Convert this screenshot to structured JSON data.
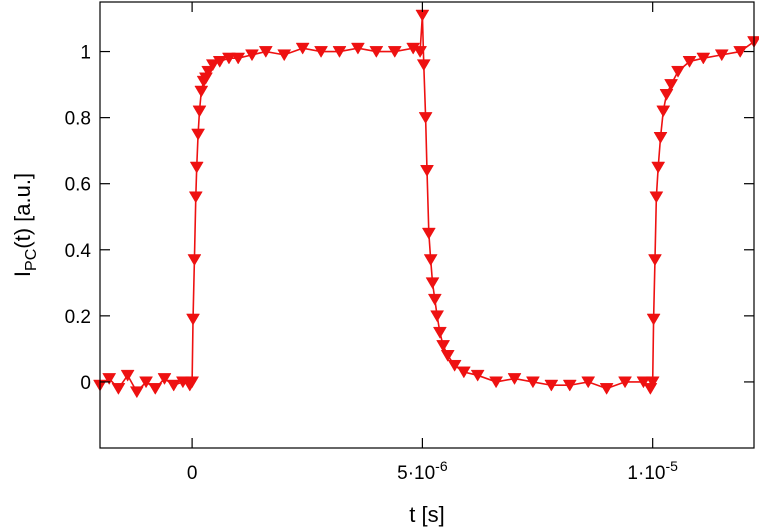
{
  "chart_data": {
    "type": "line",
    "title": "",
    "xlabel": "t [s]",
    "ylabel": "I_PC(t) [a.u.]",
    "ylabel_main": "I",
    "ylabel_sub": "PC",
    "ylabel_rest": "(t) [a.u.]",
    "xlim": [
      -2e-06,
      1.22e-05
    ],
    "ylim": [
      -0.2,
      1.15
    ],
    "grid": false,
    "marker": "down-triangle",
    "color": "#ee1111",
    "x_ticks": [
      {
        "value": 0,
        "label": "0",
        "label_exp": ""
      },
      {
        "value": 5e-06,
        "label": "5·10",
        "label_exp": "-6"
      },
      {
        "value": 1e-05,
        "label": "1·10",
        "label_exp": "-5"
      }
    ],
    "y_ticks": [
      {
        "value": 0,
        "label": "0"
      },
      {
        "value": 0.2,
        "label": "0.2"
      },
      {
        "value": 0.4,
        "label": "0.4"
      },
      {
        "value": 0.6,
        "label": "0.6"
      },
      {
        "value": 0.8,
        "label": "0.8"
      },
      {
        "value": 1.0,
        "label": "1"
      }
    ],
    "series": [
      {
        "x": [
          -2e-06,
          -1.8e-06,
          -1.6e-06,
          -1.4e-06,
          -1.2e-06,
          -1e-06,
          -8e-07,
          -6e-07,
          -4e-07,
          -2e-07,
          -5e-08,
          0.0,
          2e-08,
          5e-08,
          8e-08,
          1e-07,
          1.3e-07,
          1.6e-07,
          2e-07,
          2.5e-07,
          3e-07,
          3.5e-07,
          4.5e-07,
          6e-07,
          8e-07,
          1e-06,
          1.3e-06,
          1.6e-06,
          2e-06,
          2.4e-06,
          2.8e-06,
          3.2e-06,
          3.6e-06,
          4e-06,
          4.4e-06,
          4.8e-06,
          4.95e-06,
          5e-06,
          5.03e-06,
          5.07e-06,
          5.1e-06,
          5.14e-06,
          5.18e-06,
          5.22e-06,
          5.27e-06,
          5.32e-06,
          5.38e-06,
          5.45e-06,
          5.55e-06,
          5.7e-06,
          5.9e-06,
          6.2e-06,
          6.6e-06,
          7e-06,
          7.4e-06,
          7.8e-06,
          8.2e-06,
          8.6e-06,
          9e-06,
          9.4e-06,
          9.8e-06,
          9.95e-06,
          1e-05,
          1.002e-05,
          1.005e-05,
          1.008e-05,
          1.012e-05,
          1.017e-05,
          1.023e-05,
          1.03e-05,
          1.04e-05,
          1.055e-05,
          1.08e-05,
          1.11e-05,
          1.15e-05,
          1.19e-05,
          1.22e-05
        ],
        "y": [
          -0.01,
          0.01,
          -0.02,
          0.02,
          -0.03,
          0.0,
          -0.02,
          0.01,
          -0.01,
          0.0,
          -0.01,
          0.0,
          0.19,
          0.37,
          0.56,
          0.65,
          0.75,
          0.82,
          0.88,
          0.91,
          0.92,
          0.94,
          0.96,
          0.97,
          0.98,
          0.98,
          0.99,
          1.0,
          0.99,
          1.01,
          1.0,
          1.0,
          1.01,
          1.0,
          1.0,
          1.01,
          1.0,
          1.11,
          0.96,
          0.8,
          0.64,
          0.45,
          0.37,
          0.3,
          0.25,
          0.2,
          0.15,
          0.11,
          0.08,
          0.05,
          0.03,
          0.02,
          0.0,
          0.01,
          0.0,
          -0.01,
          -0.01,
          0.0,
          -0.02,
          0.0,
          0.0,
          -0.02,
          0.0,
          0.19,
          0.37,
          0.56,
          0.65,
          0.74,
          0.82,
          0.87,
          0.9,
          0.94,
          0.97,
          0.98,
          0.99,
          1.0,
          1.03
        ]
      }
    ]
  }
}
